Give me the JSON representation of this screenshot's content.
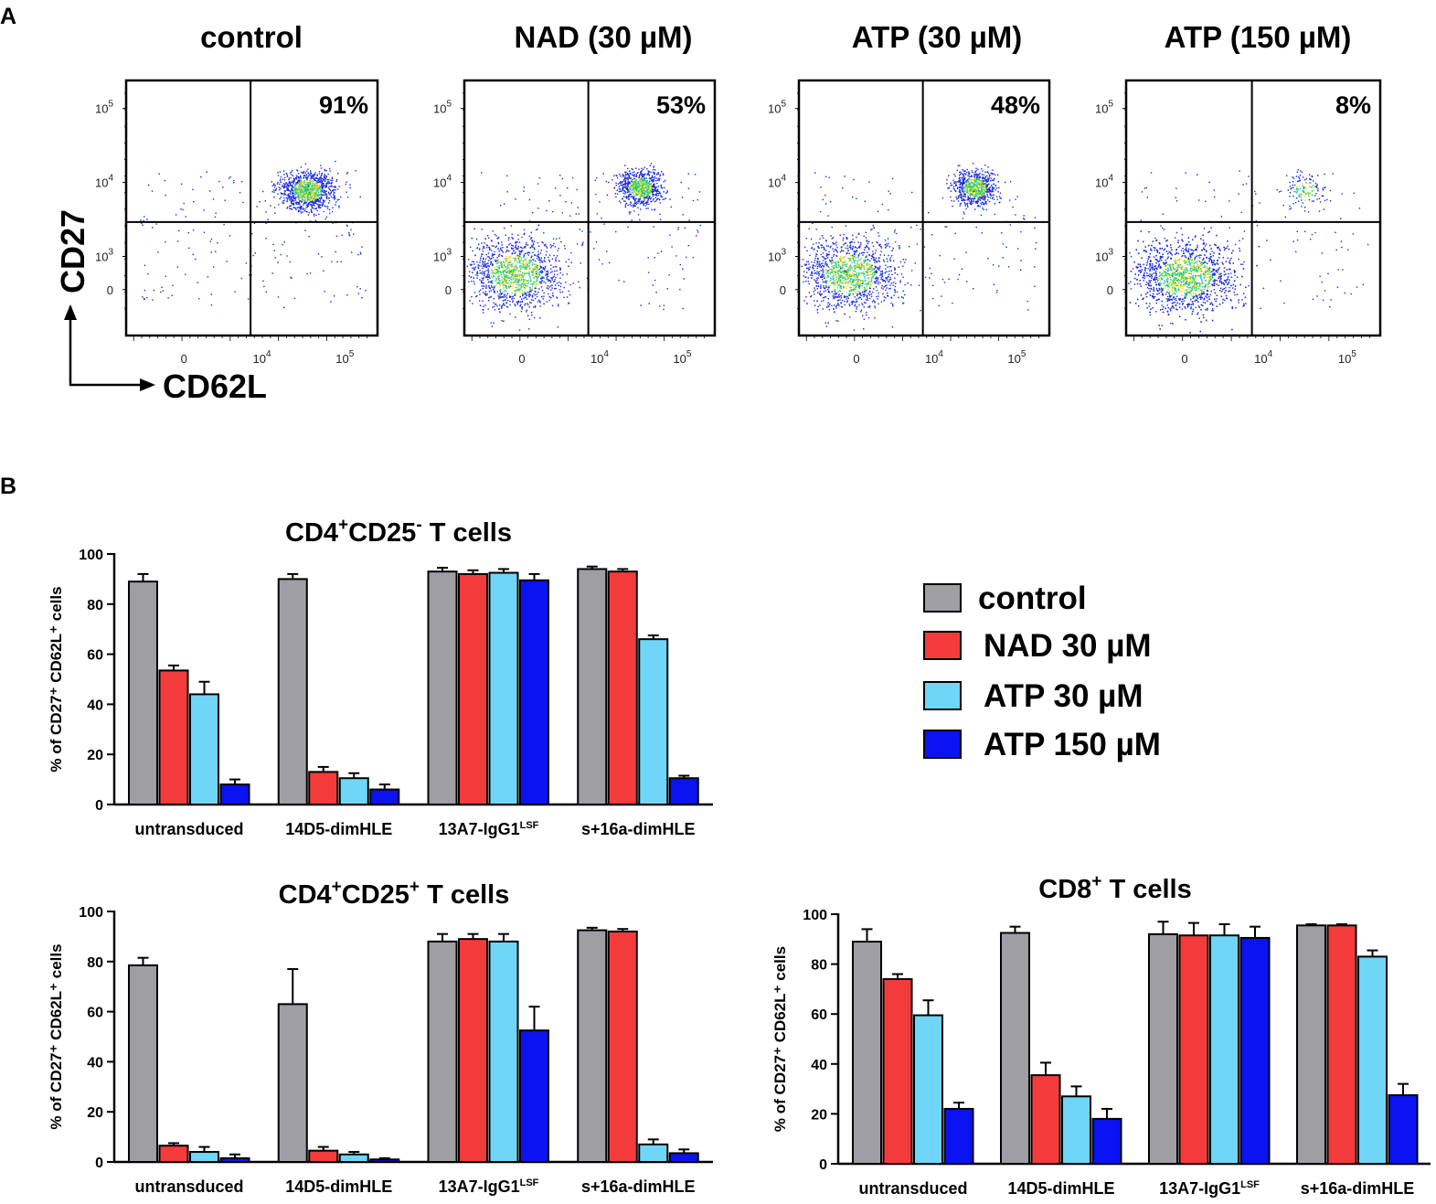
{
  "panels": {
    "a_label": "A",
    "b_label": "B"
  },
  "flow": {
    "plots": [
      {
        "title": "control",
        "percent": "91%",
        "density": "high_ur"
      },
      {
        "title": "NAD (30 µM)",
        "percent": "53%",
        "density": "split"
      },
      {
        "title": "ATP (30 µM)",
        "percent": "48%",
        "density": "split"
      },
      {
        "title": "ATP (150 µM)",
        "percent": "8%",
        "density": "low_ur"
      }
    ],
    "y_axis_label": "CD27",
    "x_axis_label": "CD62L",
    "y_ticks": [
      {
        "base": "10",
        "exp": "5"
      },
      {
        "base": "10",
        "exp": "4"
      },
      {
        "base": "10",
        "exp": "3"
      },
      {
        "base": "0",
        "exp": ""
      }
    ],
    "x_ticks": [
      {
        "base": "0",
        "exp": ""
      },
      {
        "base": "10",
        "exp": "4"
      },
      {
        "base": "10",
        "exp": "5"
      }
    ]
  },
  "legend": {
    "items": [
      {
        "label": "control",
        "color": "#9e9ea3"
      },
      {
        "label": "NAD 30 µM",
        "color": "#f43b3b"
      },
      {
        "label": "ATP 30 µM",
        "color": "#6fd6f7"
      },
      {
        "label": "ATP 150 µM",
        "color": "#0b13f2"
      }
    ]
  },
  "chart_data": [
    {
      "type": "bar",
      "title": "CD4⁺CD25⁻ T cells",
      "title_parts": {
        "p1": "CD4",
        "s1": "+",
        "p2": "CD25",
        "s2": "-",
        "p3": " T cells"
      },
      "ylabel": "% of CD27⁺ CD62L⁺ cells",
      "ylim": [
        0,
        100
      ],
      "yticks": [
        0,
        20,
        40,
        60,
        80,
        100
      ],
      "categories": [
        "untransduced",
        "14D5-dimHLE",
        "13A7-IgG1LSF",
        "s+16a-dimHLE"
      ],
      "series": [
        {
          "name": "control",
          "values": [
            89,
            90,
            93,
            94
          ],
          "errors": [
            3,
            2,
            1.5,
            1
          ]
        },
        {
          "name": "NAD 30 µM",
          "values": [
            53.5,
            13,
            92,
            93
          ],
          "errors": [
            2,
            2,
            1.5,
            1
          ]
        },
        {
          "name": "ATP 30 µM",
          "values": [
            44,
            10.5,
            92.5,
            66
          ],
          "errors": [
            5,
            2,
            1.5,
            1.5
          ]
        },
        {
          "name": "ATP 150 µM",
          "values": [
            8,
            6,
            89.5,
            10.5
          ],
          "errors": [
            2,
            2,
            2.5,
            1
          ]
        }
      ]
    },
    {
      "type": "bar",
      "title": "CD4⁺CD25⁺ T cells",
      "title_parts": {
        "p1": "CD4",
        "s1": "+",
        "p2": "CD25",
        "s2": "+",
        "p3": " T cells"
      },
      "ylabel": "% of CD27⁺ CD62L⁺ cells",
      "ylim": [
        0,
        100
      ],
      "yticks": [
        0,
        20,
        40,
        60,
        80,
        100
      ],
      "categories": [
        "untransduced",
        "14D5-dimHLE",
        "13A7-IgG1LSF",
        "s+16a-dimHLE"
      ],
      "series": [
        {
          "name": "control",
          "values": [
            78.5,
            63,
            88,
            92.5
          ],
          "errors": [
            3,
            14,
            3,
            1
          ]
        },
        {
          "name": "NAD 30 µM",
          "values": [
            6.5,
            4.5,
            89,
            92
          ],
          "errors": [
            1,
            1.5,
            2,
            1
          ]
        },
        {
          "name": "ATP 30 µM",
          "values": [
            4,
            3,
            88,
            7
          ],
          "errors": [
            2,
            1,
            3,
            2
          ]
        },
        {
          "name": "ATP 150 µM",
          "values": [
            1.5,
            1,
            52.5,
            3.5
          ],
          "errors": [
            1.5,
            0.5,
            9.5,
            1.5
          ]
        }
      ]
    },
    {
      "type": "bar",
      "title": "CD8⁺ T cells",
      "title_parts": {
        "p1": "CD8",
        "s1": "+",
        "p2": " T cells",
        "s2": "",
        "p3": ""
      },
      "ylabel": "% of CD27⁺ CD62L⁺ cells",
      "ylim": [
        0,
        100
      ],
      "yticks": [
        0,
        20,
        40,
        60,
        80,
        100
      ],
      "categories": [
        "untransduced",
        "14D5-dimHLE",
        "13A7-IgG1LSF",
        "s+16a-dimHLE"
      ],
      "series": [
        {
          "name": "control",
          "values": [
            89,
            92.5,
            92,
            95.5
          ],
          "errors": [
            5,
            2.5,
            5,
            0.5
          ]
        },
        {
          "name": "NAD 30 µM",
          "values": [
            74,
            35.5,
            91.5,
            95.5
          ],
          "errors": [
            2,
            5,
            5,
            0.5
          ]
        },
        {
          "name": "ATP 30 µM",
          "values": [
            59.5,
            27,
            91.5,
            83
          ],
          "errors": [
            6,
            4,
            4.5,
            2.5
          ]
        },
        {
          "name": "ATP 150 µM",
          "values": [
            22,
            18,
            90.5,
            27.5
          ],
          "errors": [
            2.5,
            4,
            4.5,
            4.5
          ]
        }
      ]
    }
  ]
}
